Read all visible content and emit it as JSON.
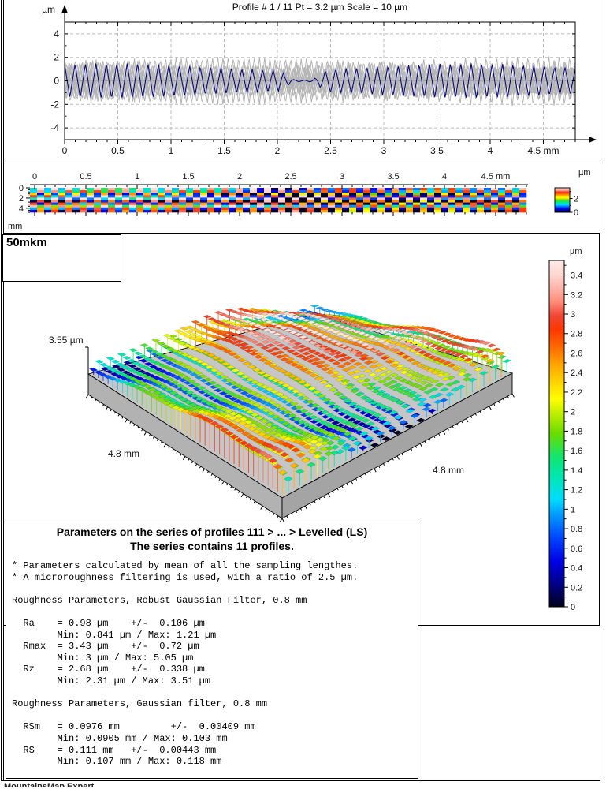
{
  "page": {
    "background": "#ffffff",
    "border_color": "#000000",
    "watermark": "MountainsMap Expert"
  },
  "chart_data": [
    {
      "type": "line",
      "name": "profile-series-chart",
      "title": "Profile # 1 / 11 Pt = 3.2 µm  Scale = 10 µm",
      "y_unit": "µm",
      "x_unit": "mm",
      "xlim": [
        0,
        4.8
      ],
      "ylim": [
        -5,
        5
      ],
      "x_ticks": [
        0,
        0.5,
        1,
        1.5,
        2,
        2.5,
        3,
        3.5,
        4,
        4.5
      ],
      "x_tick_labels": [
        "0",
        "0.5",
        "1",
        "1.5",
        "2",
        "2.5",
        "3",
        "3.5",
        "4",
        "4.5 mm"
      ],
      "y_ticks": [
        4,
        2,
        0,
        -2,
        -4
      ],
      "y_tick_labels": [
        "4",
        "2",
        "0",
        "-2",
        "-4"
      ],
      "grid": true,
      "series": [
        {
          "name": "highlighted profile 1 of 11",
          "color": "#000080",
          "amplitude_um": 1.2,
          "period_mm": 0.098,
          "flat_zone_mm": [
            2.05,
            2.45
          ]
        },
        {
          "name": "background profiles 2-11",
          "color": "#b4b4b4",
          "count": 10,
          "amplitude_um": 1.8,
          "period_mm": 0.098
        }
      ]
    },
    {
      "type": "heatmap",
      "name": "profile-series-intensity-map",
      "x_ticks": [
        0,
        0.5,
        1,
        1.5,
        2,
        2.5,
        3,
        3.5,
        4,
        4.5
      ],
      "x_tick_labels": [
        "0",
        "0.5",
        "1",
        "1.5",
        "2",
        "2.5",
        "3",
        "3.5",
        "4",
        "4.5 mm"
      ],
      "y_ticks": [
        0,
        2,
        4
      ],
      "y_tick_labels": [
        "0",
        "2",
        "4"
      ],
      "y_axis_unit": "mm",
      "extent_mm": [
        4.8,
        4.8
      ],
      "profiles_count": 11,
      "colorbar": {
        "unit": "µm",
        "tick_values": [
          2,
          0
        ],
        "tick_labels": [
          "2",
          "0"
        ],
        "min": 0,
        "max": 3.55
      }
    },
    {
      "type": "3d-surface",
      "name": "surface-3d-view",
      "scale_bar_label": "50mkm",
      "z_axis_label": "3.55 µm",
      "x_axis_label": "4.8 mm",
      "y_axis_label": "4.8 mm",
      "z_range_um": [
        0,
        3.55
      ],
      "colorbar": {
        "unit": "µm",
        "ticks": [
          3.4,
          3.2,
          3,
          2.8,
          2.6,
          2.4,
          2.2,
          2,
          1.8,
          1.6,
          1.4,
          1.2,
          1,
          0.8,
          0.6,
          0.4,
          0.2,
          0
        ],
        "min": 0,
        "max": 3.55,
        "palette": [
          [
            0.0,
            "#02001a"
          ],
          [
            0.06,
            "#00007f"
          ],
          [
            0.13,
            "#0000e6"
          ],
          [
            0.2,
            "#0046ff"
          ],
          [
            0.27,
            "#00a0ff"
          ],
          [
            0.31,
            "#00dcff"
          ],
          [
            0.37,
            "#00e6b9"
          ],
          [
            0.43,
            "#0fe673"
          ],
          [
            0.5,
            "#69dc00"
          ],
          [
            0.56,
            "#c3ef00"
          ],
          [
            0.6,
            "#ffff00"
          ],
          [
            0.65,
            "#ffd200"
          ],
          [
            0.7,
            "#ffa500"
          ],
          [
            0.75,
            "#ff6900"
          ],
          [
            0.8,
            "#ff3700"
          ],
          [
            0.84,
            "#ef4633"
          ],
          [
            0.88,
            "#ff8c78"
          ],
          [
            0.92,
            "#ffb4aa"
          ],
          [
            0.96,
            "#ffd7d2"
          ],
          [
            1.0,
            "#ffeae6"
          ]
        ]
      }
    }
  ],
  "parameters_panel": {
    "title_line1": "Parameters on the series of profiles 111 > ... > Levelled (LS)",
    "title_line2": "The series contains 11 profiles.",
    "body_lines": [
      "* Parameters calculated by mean of all the sampling lengthes.",
      "* A microroughness filtering is used, with a ratio of 2.5 µm.",
      "",
      "Roughness Parameters, Robust Gaussian Filter, 0.8 mm",
      "",
      "  Ra    = 0.98 µm    +/-  0.106 µm",
      "        Min: 0.841 µm / Max: 1.21 µm",
      "  Rmax  = 3.43 µm    +/-  0.72 µm",
      "        Min: 3 µm / Max: 5.05 µm",
      "  Rz    = 2.68 µm    +/-  0.338 µm",
      "        Min: 2.31 µm / Max: 3.51 µm",
      "",
      "Roughness Parameters, Gaussian filter, 0.8 mm",
      "",
      "  RSm   = 0.0976 mm         +/-  0.00409 mm",
      "        Min: 0.0905 mm / Max: 0.103 mm",
      "  RS    = 0.111 mm   +/-  0.00443 mm",
      "        Min: 0.107 mm / Max: 0.118 mm"
    ]
  }
}
